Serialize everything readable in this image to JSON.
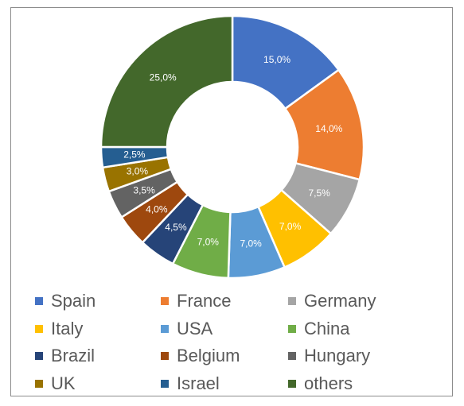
{
  "chart_data": {
    "type": "pie",
    "style": "donut",
    "title": "",
    "legend_placement": "bottom",
    "categories": [
      "Spain",
      "France",
      "Germany",
      "Italy",
      "USA",
      "China",
      "Brazil",
      "Belgium",
      "Hungary",
      "UK",
      "Israel",
      "others"
    ],
    "values": [
      15.0,
      14.0,
      7.5,
      7.0,
      7.0,
      7.0,
      4.5,
      4.0,
      3.5,
      3.0,
      2.5,
      25.0
    ],
    "data_labels": [
      "15,0%",
      "14,0%",
      "7,5%",
      "7,0%",
      "7,0%",
      "7,0%",
      "4,5%",
      "4,0%",
      "3,5%",
      "3,0%",
      "2,5%",
      "25,0%"
    ],
    "colors": [
      "#4472c4",
      "#ed7d31",
      "#a5a5a5",
      "#ffc000",
      "#5b9bd5",
      "#70ad47",
      "#264478",
      "#9e480e",
      "#636363",
      "#997300",
      "#255e91",
      "#43682b"
    ]
  }
}
